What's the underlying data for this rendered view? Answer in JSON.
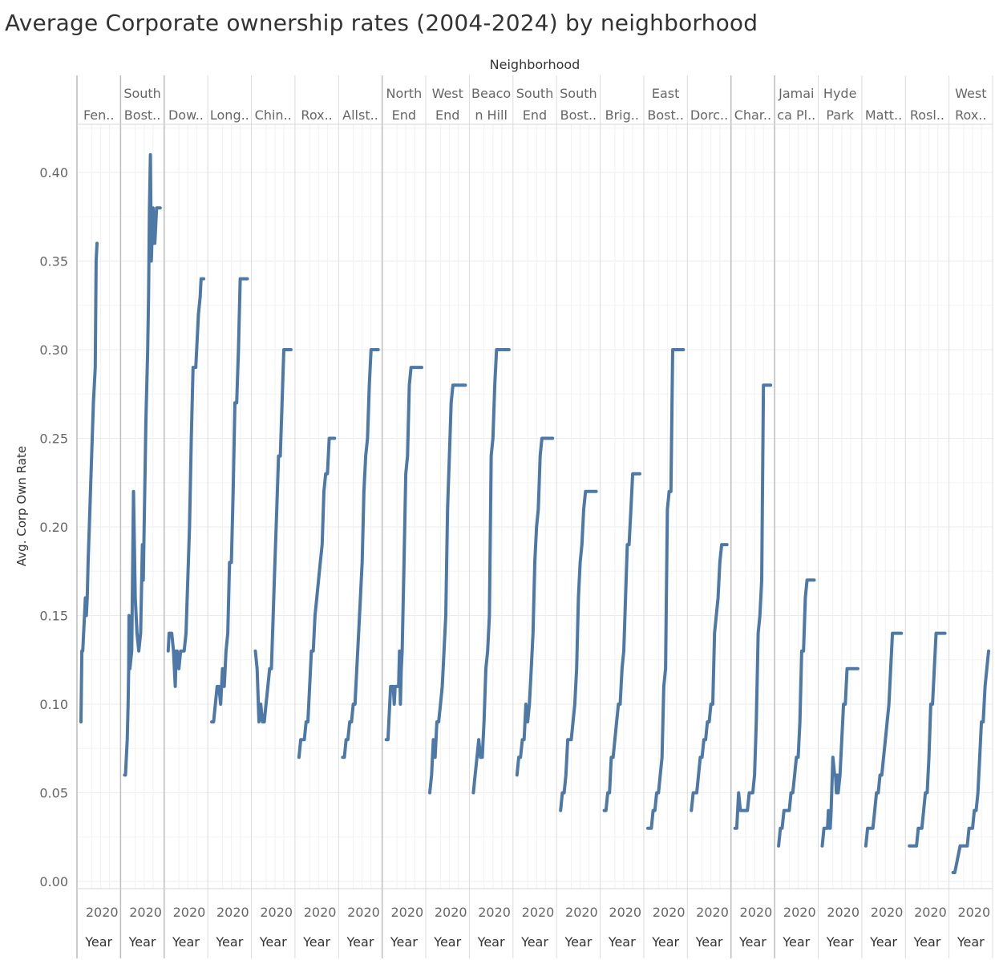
{
  "chart_data": {
    "type": "line",
    "title": "Average Corporate ownership rates (2004-2024) by neighborhood",
    "column_header": "Neighborhood",
    "ylabel": "Avg. Corp Own Rate",
    "xlabel": "Year",
    "x_tick_label": "2020",
    "ylim": [
      0,
      0.43
    ],
    "xlim": [
      2004,
      2024
    ],
    "y_ticks": [
      "0.00",
      "0.05",
      "0.10",
      "0.15",
      "0.20",
      "0.25",
      "0.30",
      "0.35",
      "0.40"
    ],
    "grid": true,
    "series_color": "#4e79a7",
    "panels": [
      {
        "label": [
          "",
          "Fen.."
        ],
        "x": [
          2004,
          2004.5,
          2005,
          2006,
          2006.5,
          2007,
          2007.5,
          2008,
          2009,
          2010,
          2011,
          2012,
          2012.5,
          2013
        ],
        "y": [
          0.09,
          0.13,
          0.13,
          0.15,
          0.16,
          0.15,
          0.16,
          0.18,
          0.21,
          0.24,
          0.27,
          0.29,
          0.35,
          0.36
        ]
      },
      {
        "label": [
          "South",
          "Bost.."
        ],
        "x": [
          2004,
          2004.5,
          2005,
          2005.5,
          2006,
          2006.3,
          2006.5,
          2007,
          2008,
          2009,
          2009.5,
          2010,
          2010.5,
          2011,
          2012,
          2013,
          2014,
          2014.5,
          2015,
          2016,
          2017,
          2017.5,
          2018,
          2018.5,
          2019,
          2020,
          2020.5,
          2021,
          2021.5,
          2022,
          2022.5,
          2023,
          2023.5,
          2024
        ],
        "y": [
          0.06,
          0.06,
          0.07,
          0.08,
          0.1,
          0.12,
          0.15,
          0.12,
          0.13,
          0.22,
          0.19,
          0.16,
          0.15,
          0.14,
          0.13,
          0.14,
          0.19,
          0.17,
          0.2,
          0.26,
          0.3,
          0.33,
          0.38,
          0.41,
          0.35,
          0.38,
          0.36,
          0.36,
          0.37,
          0.38,
          0.38,
          0.38,
          0.38,
          0.38
        ]
      },
      {
        "label": [
          "",
          "Dow.."
        ],
        "x": [
          2004,
          2004.5,
          2005,
          2006,
          2007,
          2008,
          2008.5,
          2009,
          2010,
          2011,
          2012,
          2013,
          2014,
          2015,
          2016,
          2017,
          2018,
          2019,
          2019.5,
          2020,
          2021,
          2022,
          2022.5,
          2023,
          2024
        ],
        "y": [
          0.13,
          0.14,
          0.14,
          0.14,
          0.13,
          0.11,
          0.13,
          0.13,
          0.12,
          0.13,
          0.13,
          0.13,
          0.14,
          0.17,
          0.2,
          0.25,
          0.29,
          0.29,
          0.29,
          0.3,
          0.32,
          0.33,
          0.34,
          0.34,
          0.34
        ]
      },
      {
        "label": [
          "",
          "Long.."
        ],
        "x": [
          2004,
          2005,
          2006,
          2007,
          2008,
          2009,
          2010,
          2011,
          2012,
          2013,
          2014,
          2015,
          2016,
          2017,
          2018,
          2019,
          2020,
          2021,
          2022,
          2023,
          2024
        ],
        "y": [
          0.09,
          0.09,
          0.1,
          0.11,
          0.11,
          0.1,
          0.12,
          0.11,
          0.13,
          0.14,
          0.18,
          0.18,
          0.22,
          0.27,
          0.27,
          0.3,
          0.34,
          0.34,
          0.34,
          0.34,
          0.34
        ]
      },
      {
        "label": [
          "",
          "Chin.."
        ],
        "x": [
          2004,
          2005,
          2006,
          2007,
          2008,
          2009,
          2010,
          2011,
          2012,
          2013,
          2014,
          2015,
          2016,
          2017,
          2018,
          2019,
          2020,
          2021,
          2022,
          2023,
          2024
        ],
        "y": [
          0.13,
          0.12,
          0.09,
          0.1,
          0.09,
          0.09,
          0.1,
          0.11,
          0.12,
          0.12,
          0.15,
          0.18,
          0.21,
          0.24,
          0.24,
          0.27,
          0.3,
          0.3,
          0.3,
          0.3,
          0.3
        ]
      },
      {
        "label": [
          "",
          "Rox.."
        ],
        "x": [
          2004,
          2005,
          2006,
          2007,
          2008,
          2009,
          2010,
          2011,
          2012,
          2013,
          2014,
          2015,
          2016,
          2017,
          2018,
          2019,
          2020,
          2021,
          2022,
          2023,
          2024
        ],
        "y": [
          0.07,
          0.08,
          0.08,
          0.08,
          0.09,
          0.09,
          0.11,
          0.13,
          0.13,
          0.15,
          0.16,
          0.17,
          0.18,
          0.19,
          0.22,
          0.23,
          0.23,
          0.25,
          0.25,
          0.25,
          0.25
        ]
      },
      {
        "label": [
          "",
          "Allst.."
        ],
        "x": [
          2004,
          2005,
          2006,
          2007,
          2008,
          2009,
          2010,
          2011,
          2012,
          2013,
          2014,
          2015,
          2016,
          2017,
          2018,
          2019,
          2020,
          2021,
          2022,
          2023,
          2024
        ],
        "y": [
          0.07,
          0.07,
          0.08,
          0.08,
          0.09,
          0.09,
          0.1,
          0.1,
          0.12,
          0.14,
          0.16,
          0.18,
          0.22,
          0.24,
          0.25,
          0.28,
          0.3,
          0.3,
          0.3,
          0.3,
          0.3
        ]
      },
      {
        "label": [
          "North",
          "End"
        ],
        "x": [
          2004,
          2005,
          2006,
          2006.5,
          2007,
          2008,
          2008.5,
          2009,
          2010,
          2011,
          2011.5,
          2012,
          2012.5,
          2013,
          2014,
          2015,
          2016,
          2017,
          2018,
          2019,
          2020,
          2021,
          2022,
          2023,
          2024
        ],
        "y": [
          0.08,
          0.08,
          0.1,
          0.11,
          0.11,
          0.11,
          0.1,
          0.11,
          0.11,
          0.11,
          0.13,
          0.1,
          0.12,
          0.13,
          0.18,
          0.23,
          0.24,
          0.28,
          0.29,
          0.29,
          0.29,
          0.29,
          0.29,
          0.29,
          0.29
        ]
      },
      {
        "label": [
          "West",
          "End"
        ],
        "x": [
          2004,
          2005,
          2006,
          2007,
          2008,
          2009,
          2010,
          2011,
          2012,
          2013,
          2014,
          2015,
          2016,
          2017,
          2018,
          2019,
          2020,
          2021,
          2022,
          2023,
          2024
        ],
        "y": [
          0.05,
          0.06,
          0.08,
          0.07,
          0.09,
          0.09,
          0.1,
          0.11,
          0.13,
          0.15,
          0.21,
          0.24,
          0.27,
          0.28,
          0.28,
          0.28,
          0.28,
          0.28,
          0.28,
          0.28,
          0.28
        ]
      },
      {
        "label": [
          "Beaco",
          "n Hill"
        ],
        "x": [
          2004,
          2005,
          2006,
          2007,
          2008,
          2009,
          2010,
          2011,
          2012,
          2013,
          2014,
          2015,
          2016,
          2017,
          2018,
          2019,
          2020,
          2021,
          2022,
          2023,
          2024
        ],
        "y": [
          0.05,
          0.06,
          0.07,
          0.08,
          0.07,
          0.07,
          0.09,
          0.12,
          0.13,
          0.15,
          0.24,
          0.25,
          0.28,
          0.3,
          0.3,
          0.3,
          0.3,
          0.3,
          0.3,
          0.3,
          0.3
        ]
      },
      {
        "label": [
          "South",
          "End"
        ],
        "x": [
          2004,
          2005,
          2006,
          2007,
          2008,
          2009,
          2010,
          2011,
          2012,
          2013,
          2014,
          2015,
          2016,
          2017,
          2018,
          2019,
          2020,
          2021,
          2022,
          2023,
          2024
        ],
        "y": [
          0.06,
          0.07,
          0.07,
          0.08,
          0.08,
          0.1,
          0.09,
          0.1,
          0.12,
          0.14,
          0.18,
          0.2,
          0.21,
          0.24,
          0.25,
          0.25,
          0.25,
          0.25,
          0.25,
          0.25,
          0.25
        ]
      },
      {
        "label": [
          "South",
          "Bost.."
        ],
        "x": [
          2004,
          2005,
          2006,
          2007,
          2008,
          2009,
          2010,
          2011,
          2012,
          2013,
          2014,
          2015,
          2016,
          2017,
          2018,
          2019,
          2020,
          2021,
          2022,
          2023,
          2024
        ],
        "y": [
          0.04,
          0.05,
          0.05,
          0.06,
          0.08,
          0.08,
          0.08,
          0.09,
          0.1,
          0.12,
          0.16,
          0.18,
          0.19,
          0.21,
          0.22,
          0.22,
          0.22,
          0.22,
          0.22,
          0.22,
          0.22
        ]
      },
      {
        "label": [
          "",
          "Brig.."
        ],
        "x": [
          2004,
          2005,
          2006,
          2007,
          2008,
          2009,
          2010,
          2011,
          2012,
          2013,
          2014,
          2015,
          2016,
          2017,
          2018,
          2019,
          2020,
          2021,
          2022,
          2023,
          2024
        ],
        "y": [
          0.04,
          0.04,
          0.05,
          0.05,
          0.07,
          0.07,
          0.08,
          0.09,
          0.1,
          0.1,
          0.12,
          0.13,
          0.16,
          0.19,
          0.19,
          0.21,
          0.23,
          0.23,
          0.23,
          0.23,
          0.23
        ]
      },
      {
        "label": [
          "East",
          "Bost.."
        ],
        "x": [
          2004,
          2005,
          2006,
          2007,
          2008,
          2009,
          2010,
          2011,
          2012,
          2013,
          2014,
          2015,
          2016,
          2017,
          2018,
          2019,
          2020,
          2021,
          2022,
          2023,
          2024
        ],
        "y": [
          0.03,
          0.03,
          0.03,
          0.04,
          0.04,
          0.05,
          0.05,
          0.06,
          0.07,
          0.11,
          0.12,
          0.21,
          0.22,
          0.22,
          0.3,
          0.3,
          0.3,
          0.3,
          0.3,
          0.3,
          0.3
        ]
      },
      {
        "label": [
          "",
          "Dorc.."
        ],
        "x": [
          2004,
          2005,
          2006,
          2007,
          2008,
          2009,
          2010,
          2011,
          2012,
          2013,
          2014,
          2015,
          2016,
          2017,
          2018,
          2019,
          2020,
          2021,
          2022,
          2023,
          2024
        ],
        "y": [
          0.04,
          0.05,
          0.05,
          0.05,
          0.06,
          0.07,
          0.07,
          0.08,
          0.08,
          0.09,
          0.09,
          0.1,
          0.1,
          0.14,
          0.15,
          0.16,
          0.18,
          0.19,
          0.19,
          0.19,
          0.19
        ]
      },
      {
        "label": [
          "",
          "Char.."
        ],
        "x": [
          2004,
          2005,
          2006,
          2007,
          2008,
          2009,
          2010,
          2011,
          2012,
          2013,
          2014,
          2015,
          2016,
          2017,
          2018,
          2019,
          2020,
          2021,
          2022,
          2023,
          2024
        ],
        "y": [
          0.03,
          0.03,
          0.05,
          0.04,
          0.04,
          0.04,
          0.04,
          0.04,
          0.05,
          0.05,
          0.05,
          0.06,
          0.09,
          0.14,
          0.15,
          0.17,
          0.28,
          0.28,
          0.28,
          0.28,
          0.28
        ]
      },
      {
        "label": [
          "Jamai",
          "ca Pl.."
        ],
        "x": [
          2004,
          2005,
          2006,
          2007,
          2008,
          2009,
          2010,
          2011,
          2012,
          2013,
          2014,
          2015,
          2016,
          2017,
          2018,
          2019,
          2020,
          2021,
          2022,
          2023,
          2024
        ],
        "y": [
          0.02,
          0.03,
          0.03,
          0.04,
          0.04,
          0.04,
          0.04,
          0.05,
          0.05,
          0.06,
          0.07,
          0.07,
          0.09,
          0.13,
          0.13,
          0.16,
          0.17,
          0.17,
          0.17,
          0.17,
          0.17
        ]
      },
      {
        "label": [
          "Hyde",
          "Park"
        ],
        "x": [
          2004,
          2005,
          2006,
          2007,
          2007.5,
          2008,
          2008.5,
          2009,
          2010,
          2011,
          2011.5,
          2012,
          2012.5,
          2013,
          2014,
          2015,
          2016,
          2017,
          2018,
          2019,
          2020,
          2021,
          2022,
          2023,
          2024
        ],
        "y": [
          0.02,
          0.03,
          0.03,
          0.03,
          0.04,
          0.03,
          0.03,
          0.04,
          0.07,
          0.06,
          0.06,
          0.05,
          0.06,
          0.05,
          0.06,
          0.08,
          0.1,
          0.1,
          0.12,
          0.12,
          0.12,
          0.12,
          0.12,
          0.12,
          0.12
        ]
      },
      {
        "label": [
          "",
          "Matt.."
        ],
        "x": [
          2004,
          2005,
          2006,
          2007,
          2008,
          2009,
          2010,
          2011,
          2012,
          2013,
          2014,
          2015,
          2016,
          2017,
          2018,
          2019,
          2020,
          2021,
          2022,
          2023,
          2024
        ],
        "y": [
          0.02,
          0.03,
          0.03,
          0.03,
          0.03,
          0.04,
          0.05,
          0.05,
          0.06,
          0.06,
          0.07,
          0.08,
          0.09,
          0.1,
          0.12,
          0.14,
          0.14,
          0.14,
          0.14,
          0.14,
          0.14
        ]
      },
      {
        "label": [
          "",
          "Rosl.."
        ],
        "x": [
          2004,
          2005,
          2006,
          2007,
          2008,
          2009,
          2010,
          2011,
          2012,
          2013,
          2014,
          2015,
          2016,
          2017,
          2018,
          2019,
          2020,
          2021,
          2022,
          2023,
          2024
        ],
        "y": [
          0.02,
          0.02,
          0.02,
          0.02,
          0.02,
          0.03,
          0.03,
          0.03,
          0.04,
          0.05,
          0.05,
          0.07,
          0.1,
          0.1,
          0.12,
          0.14,
          0.14,
          0.14,
          0.14,
          0.14,
          0.14
        ]
      },
      {
        "label": [
          "West",
          "Rox.."
        ],
        "x": [
          2004,
          2005,
          2006,
          2007,
          2008,
          2009,
          2010,
          2011,
          2012,
          2013,
          2014,
          2015,
          2016,
          2017,
          2018,
          2019,
          2020,
          2021,
          2022,
          2023,
          2024
        ],
        "y": [
          0.005,
          0.005,
          0.01,
          0.015,
          0.02,
          0.02,
          0.02,
          0.02,
          0.02,
          0.03,
          0.03,
          0.03,
          0.04,
          0.04,
          0.05,
          0.07,
          0.09,
          0.09,
          0.11,
          0.12,
          0.13
        ]
      }
    ]
  }
}
